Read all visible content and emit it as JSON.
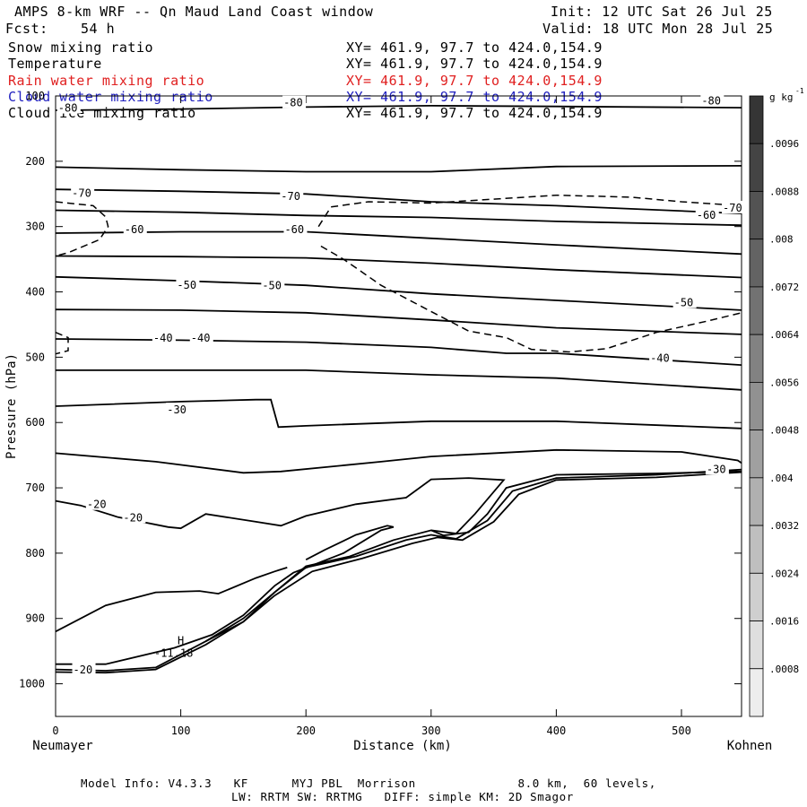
{
  "header": {
    "title": "AMPS 8-km WRF -- Qn Maud Land Coast window",
    "fcst_label": "Fcst:",
    "fcst_value": "54 h",
    "init": "Init: 12 UTC Sat 26 Jul 25",
    "valid": "Valid: 18 UTC Mon 28 Jul 25"
  },
  "fields": [
    {
      "name": "Snow mixing ratio",
      "xy": "XY= 461.9, 97.7 to 424.0,154.9",
      "color": "#000000"
    },
    {
      "name": "Temperature",
      "xy": "XY= 461.9, 97.7 to 424.0,154.9",
      "color": "#000000"
    },
    {
      "name": "Rain water mixing ratio",
      "xy": "XY= 461.9, 97.7 to 424.0,154.9",
      "color": "#e02020"
    },
    {
      "name": "Cloud water mixing ratio",
      "xy": "XY= 461.9, 97.7 to 424.0,154.9",
      "color": "#2020c0"
    },
    {
      "name": "Cloud ice mixing ratio",
      "xy": "XY= 461.9, 97.7 to 424.0,154.9",
      "color": "#000000"
    }
  ],
  "footer": {
    "line1": "Model Info: V4.3.3   KF      MYJ PBL  Morrison              8.0 km,  60 levels,",
    "line2": "LW: RRTM SW: RRTMG   DIFF: simple KM: 2D Smagor"
  },
  "chart_data": {
    "type": "contour",
    "xlabel": "Distance (km)",
    "ylabel": "Pressure (hPa)",
    "x_left_label": "Neumayer",
    "x_right_label": "Kohnen",
    "xlim": [
      0,
      548
    ],
    "ylim": [
      1050,
      100
    ],
    "xticks": [
      0,
      100,
      200,
      300,
      400,
      500
    ],
    "yticks": [
      100,
      200,
      300,
      400,
      500,
      600,
      700,
      800,
      900,
      1000
    ],
    "colorbar": {
      "unit": "g kg",
      "unit_exp": "-1",
      "ticks": [
        ".0096",
        ".0088",
        ".008",
        ".0072",
        ".0064",
        ".0056",
        ".0048",
        ".004",
        ".0032",
        ".0024",
        ".0016",
        ".0008"
      ],
      "tick_values": [
        0.0096,
        0.0088,
        0.008,
        0.0072,
        0.0064,
        0.0056,
        0.0048,
        0.004,
        0.0032,
        0.0024,
        0.0016,
        0.0008
      ],
      "range": [
        0,
        0.0104
      ]
    },
    "temperature_labels": [
      {
        "text": "-80",
        "x": 2,
        "p": 120
      },
      {
        "text": "-80",
        "x": 182,
        "p": 112
      },
      {
        "text": "-80",
        "x": 516,
        "p": 109
      },
      {
        "text": "-70",
        "x": 13,
        "p": 250
      },
      {
        "text": "-70",
        "x": 180,
        "p": 255
      },
      {
        "text": "-70",
        "x": 533,
        "p": 273
      },
      {
        "text": "-60",
        "x": 55,
        "p": 306
      },
      {
        "text": "-60",
        "x": 183,
        "p": 306
      },
      {
        "text": "-60",
        "x": 512,
        "p": 284
      },
      {
        "text": "-50",
        "x": 97,
        "p": 391
      },
      {
        "text": "-50",
        "x": 165,
        "p": 392
      },
      {
        "text": "-50",
        "x": 494,
        "p": 418
      },
      {
        "text": "-40",
        "x": 78,
        "p": 472
      },
      {
        "text": "-40",
        "x": 108,
        "p": 472
      },
      {
        "text": "-40",
        "x": 475,
        "p": 503
      },
      {
        "text": "-30",
        "x": 89,
        "p": 582
      },
      {
        "text": "-30",
        "x": 520,
        "p": 673
      },
      {
        "text": "-20",
        "x": 25,
        "p": 727
      },
      {
        "text": "-20",
        "x": 54,
        "p": 747
      },
      {
        "text": "-20",
        "x": 14,
        "p": 980
      }
    ],
    "high_marker": {
      "symbol": "H",
      "value": "-11.18",
      "x": 80,
      "p": 945
    },
    "temperature_contours": [
      [
        [
          0,
          122
        ],
        [
          100,
          120
        ],
        [
          200,
          117
        ],
        [
          300,
          115
        ],
        [
          400,
          116
        ],
        [
          548,
          118
        ]
      ],
      [
        [
          0,
          209
        ],
        [
          100,
          213
        ],
        [
          200,
          216
        ],
        [
          300,
          216
        ],
        [
          400,
          208
        ],
        [
          548,
          207
        ]
      ],
      [
        [
          0,
          243
        ],
        [
          100,
          246
        ],
        [
          200,
          250
        ],
        [
          300,
          262
        ],
        [
          400,
          268
        ],
        [
          548,
          280
        ]
      ],
      [
        [
          0,
          275
        ],
        [
          100,
          278
        ],
        [
          200,
          283
        ],
        [
          300,
          286
        ],
        [
          400,
          292
        ],
        [
          548,
          298
        ]
      ],
      [
        [
          0,
          310
        ],
        [
          100,
          308
        ],
        [
          200,
          308
        ],
        [
          300,
          318
        ],
        [
          400,
          328
        ],
        [
          548,
          342
        ]
      ],
      [
        [
          0,
          345
        ],
        [
          100,
          346
        ],
        [
          200,
          348
        ],
        [
          300,
          356
        ],
        [
          400,
          366
        ],
        [
          548,
          378
        ]
      ],
      [
        [
          0,
          377
        ],
        [
          100,
          383
        ],
        [
          200,
          390
        ],
        [
          300,
          403
        ],
        [
          400,
          413
        ],
        [
          548,
          428
        ]
      ],
      [
        [
          0,
          427
        ],
        [
          100,
          428
        ],
        [
          200,
          432
        ],
        [
          300,
          443
        ],
        [
          400,
          455
        ],
        [
          548,
          465
        ]
      ],
      [
        [
          0,
          472
        ],
        [
          100,
          474
        ],
        [
          200,
          477
        ],
        [
          300,
          485
        ],
        [
          360,
          494
        ],
        [
          400,
          494
        ],
        [
          548,
          512
        ]
      ],
      [
        [
          0,
          520
        ],
        [
          100,
          520
        ],
        [
          200,
          520
        ],
        [
          300,
          527
        ],
        [
          400,
          532
        ],
        [
          548,
          550
        ]
      ],
      [
        [
          0,
          575
        ],
        [
          100,
          568
        ],
        [
          160,
          565
        ],
        [
          172,
          565
        ],
        [
          178,
          607
        ],
        [
          200,
          605
        ],
        [
          300,
          598
        ],
        [
          400,
          598
        ],
        [
          548,
          609
        ],
        [
          548,
          609
        ]
      ],
      [
        [
          0,
          647
        ],
        [
          80,
          660
        ],
        [
          150,
          677
        ],
        [
          180,
          675
        ],
        [
          260,
          660
        ],
        [
          300,
          652
        ],
        [
          400,
          642
        ],
        [
          500,
          645
        ],
        [
          545,
          658
        ],
        [
          548,
          662
        ]
      ],
      [
        [
          0,
          720
        ],
        [
          20,
          727
        ],
        [
          50,
          745
        ],
        [
          90,
          760
        ],
        [
          100,
          762
        ],
        [
          120,
          740
        ],
        [
          160,
          752
        ],
        [
          180,
          758
        ],
        [
          200,
          743
        ],
        [
          240,
          725
        ],
        [
          280,
          715
        ],
        [
          300,
          687
        ],
        [
          330,
          685
        ],
        [
          358,
          688
        ],
        [
          335,
          740
        ],
        [
          320,
          770
        ],
        [
          300,
          765
        ]
      ],
      [
        [
          0,
          920
        ],
        [
          40,
          880
        ],
        [
          80,
          860
        ],
        [
          115,
          858
        ],
        [
          130,
          862
        ],
        [
          160,
          838
        ],
        [
          175,
          828
        ],
        [
          185,
          822
        ]
      ],
      [
        [
          0,
          970
        ],
        [
          40,
          970
        ],
        [
          95,
          945
        ],
        [
          125,
          925
        ],
        [
          150,
          895
        ],
        [
          175,
          850
        ],
        [
          190,
          830
        ],
        [
          230,
          800
        ],
        [
          260,
          765
        ],
        [
          270,
          760
        ],
        [
          265,
          758
        ],
        [
          240,
          772
        ],
        [
          215,
          795
        ],
        [
          200,
          810
        ]
      ],
      [
        [
          120,
          935
        ],
        [
          150,
          905
        ],
        [
          175,
          860
        ],
        [
          200,
          820
        ],
        [
          235,
          805
        ],
        [
          270,
          780
        ],
        [
          300,
          765
        ],
        [
          310,
          773
        ],
        [
          330,
          768
        ],
        [
          345,
          740
        ],
        [
          360,
          700
        ],
        [
          400,
          680
        ],
        [
          480,
          678
        ],
        [
          548,
          675
        ]
      ]
    ],
    "terrain_contours": [
      [
        [
          0,
          978
        ],
        [
          40,
          980
        ],
        [
          80,
          975
        ],
        [
          120,
          935
        ],
        [
          150,
          900
        ],
        [
          175,
          860
        ],
        [
          200,
          822
        ],
        [
          240,
          805
        ],
        [
          280,
          780
        ],
        [
          300,
          772
        ],
        [
          320,
          778
        ],
        [
          345,
          750
        ],
        [
          365,
          705
        ],
        [
          400,
          685
        ],
        [
          480,
          680
        ],
        [
          548,
          672
        ]
      ],
      [
        [
          0,
          982
        ],
        [
          40,
          983
        ],
        [
          80,
          978
        ],
        [
          120,
          940
        ],
        [
          150,
          905
        ],
        [
          175,
          865
        ],
        [
          205,
          828
        ],
        [
          245,
          808
        ],
        [
          285,
          785
        ],
        [
          305,
          776
        ],
        [
          325,
          780
        ],
        [
          350,
          752
        ],
        [
          370,
          710
        ],
        [
          400,
          688
        ],
        [
          480,
          684
        ],
        [
          548,
          676
        ]
      ]
    ],
    "cloud_ice_contours": [
      [
        [
          0,
          262
        ],
        [
          30,
          268
        ],
        [
          40,
          285
        ],
        [
          42,
          300
        ],
        [
          35,
          320
        ],
        [
          10,
          340
        ],
        [
          0,
          345
        ]
      ],
      [
        [
          210,
          300
        ],
        [
          220,
          270
        ],
        [
          250,
          262
        ],
        [
          300,
          264
        ],
        [
          350,
          258
        ],
        [
          400,
          252
        ],
        [
          460,
          255
        ],
        [
          500,
          262
        ],
        [
          548,
          268
        ]
      ],
      [
        [
          212,
          330
        ],
        [
          230,
          350
        ],
        [
          260,
          390
        ],
        [
          300,
          430
        ],
        [
          330,
          460
        ],
        [
          360,
          470
        ],
        [
          380,
          488
        ],
        [
          410,
          492
        ],
        [
          440,
          487
        ],
        [
          480,
          462
        ],
        [
          520,
          445
        ],
        [
          548,
          432
        ]
      ],
      [
        [
          0,
          462
        ],
        [
          10,
          470
        ],
        [
          10,
          490
        ],
        [
          0,
          495
        ]
      ]
    ]
  }
}
